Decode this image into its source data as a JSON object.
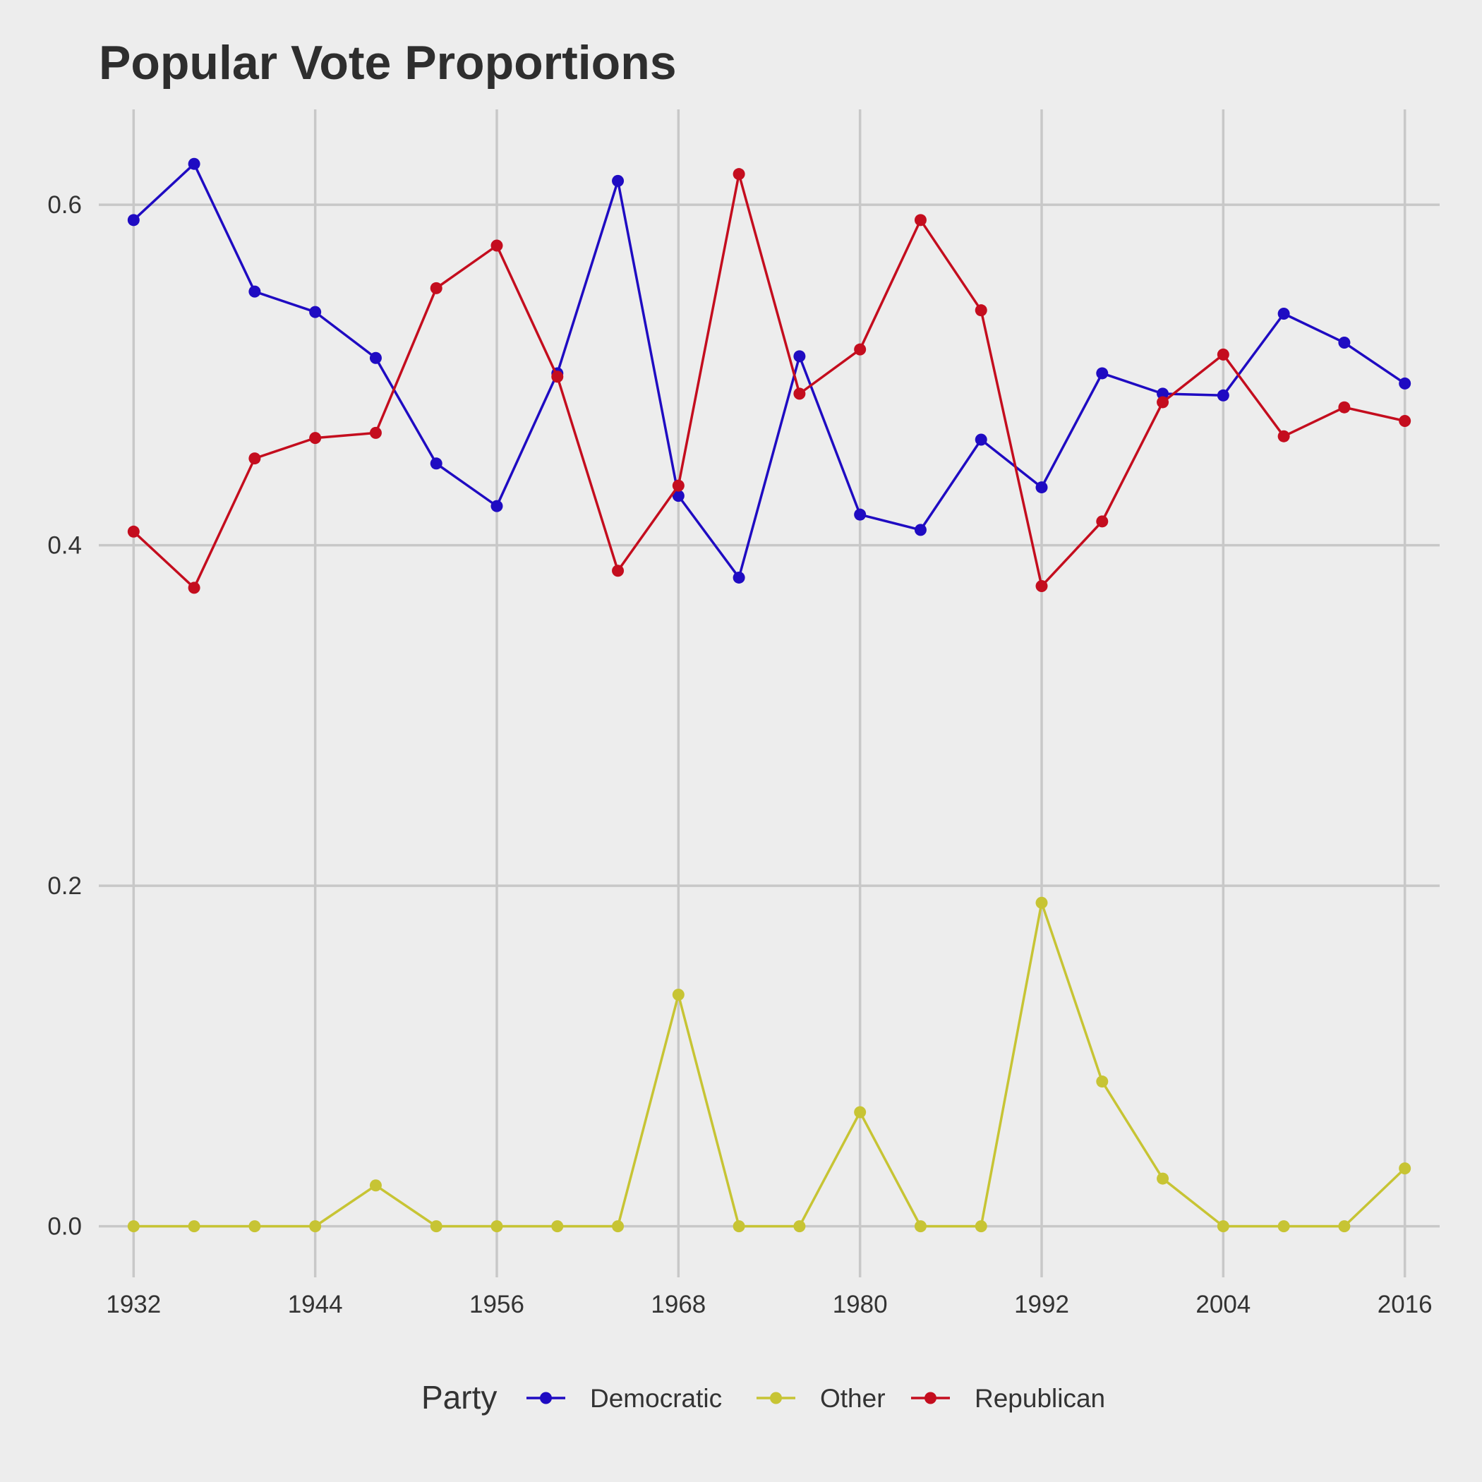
{
  "chart_data": {
    "type": "line",
    "title": "Popular Vote Proportions",
    "xlabel": "",
    "ylabel": "",
    "x": [
      1932,
      1936,
      1940,
      1944,
      1948,
      1952,
      1956,
      1960,
      1964,
      1968,
      1972,
      1976,
      1980,
      1984,
      1988,
      1992,
      1996,
      2000,
      2004,
      2008,
      2012,
      2016
    ],
    "xlim": [
      1929.7,
      2018.3
    ],
    "ylim": [
      -0.03,
      0.656
    ],
    "x_ticks": [
      1932,
      1944,
      1956,
      1968,
      1980,
      1992,
      2004,
      2016
    ],
    "x_tick_labels": [
      "1932",
      "1944",
      "1956",
      "1968",
      "1980",
      "1992",
      "2004",
      "2016"
    ],
    "y_ticks": [
      0.0,
      0.2,
      0.4,
      0.6
    ],
    "y_tick_labels": [
      "0.0",
      "0.2",
      "0.4",
      "0.6"
    ],
    "grid": true,
    "legend": {
      "title": "Party",
      "position": "bottom"
    },
    "series": [
      {
        "name": "Democratic",
        "color": "#1f0bc2",
        "values": [
          0.591,
          0.624,
          0.549,
          0.537,
          0.51,
          0.448,
          0.423,
          0.501,
          0.614,
          0.429,
          0.381,
          0.511,
          0.418,
          0.409,
          0.462,
          0.434,
          0.501,
          0.489,
          0.488,
          0.536,
          0.519,
          0.495
        ]
      },
      {
        "name": "Other",
        "color": "#c7c434",
        "values": [
          0.0,
          0.0,
          0.0,
          0.0,
          0.024,
          0.0,
          0.0,
          0.0,
          0.0,
          0.136,
          0.0,
          0.0,
          0.067,
          0.0,
          0.0,
          0.19,
          0.085,
          0.028,
          0.0,
          0.0,
          0.0,
          0.034
        ]
      },
      {
        "name": "Republican",
        "color": "#c40d1e",
        "values": [
          0.408,
          0.375,
          0.451,
          0.463,
          0.466,
          0.551,
          0.576,
          0.499,
          0.385,
          0.435,
          0.618,
          0.489,
          0.515,
          0.591,
          0.538,
          0.376,
          0.414,
          0.484,
          0.512,
          0.464,
          0.481,
          0.473
        ]
      }
    ]
  }
}
